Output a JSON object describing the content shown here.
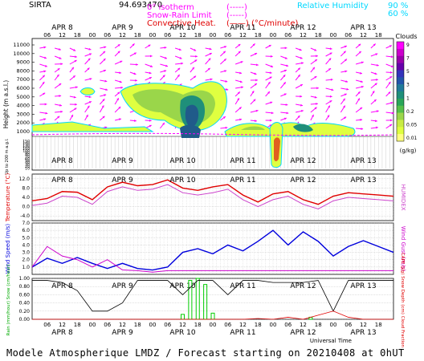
{
  "header": {
    "site": "SIRTA",
    "coords": "94.693470",
    "legend_left": [
      {
        "label": "0° isotherm",
        "sample": "(-----)",
        "color": "#ff00ff"
      },
      {
        "label": "Snow-Rain Limit",
        "sample": "(-----)",
        "color": "#ff00ff"
      },
      {
        "label": "Convective Heat.",
        "sample": "(——) (°C/minute)",
        "color": "#e00000"
      }
    ],
    "legend_right": [
      {
        "label": "Relative Humidity",
        "value": "90 %",
        "color": "#00d8ff"
      },
      {
        "label": "",
        "value": "60 %",
        "color": "#00d8ff"
      }
    ]
  },
  "time_axis": {
    "days": [
      "APR 8",
      "APR 9",
      "APR 10",
      "APR 11",
      "APR 12",
      "APR 13"
    ],
    "hours": [
      "06",
      "12",
      "18",
      "00",
      "06",
      "12",
      "18",
      "00",
      "06",
      "12",
      "18",
      "00",
      "06",
      "12",
      "18",
      "00",
      "06",
      "12",
      "18",
      "00",
      "06",
      "12",
      "18"
    ],
    "bottom_label": "Universal Time"
  },
  "footer": "Modele Atmospherique LMDZ / Forecast starting on 20210408 at 0hUT",
  "chart_data": [
    {
      "type": "heatmap",
      "title": "",
      "ylabel": "Height (m a.s.l.)",
      "ylabel2": "Up to 200 m a.g.l.",
      "y_ticks_upper": [
        11000,
        10000,
        9000,
        8000,
        7000,
        6000,
        5000,
        4000,
        3000,
        2000,
        1000
      ],
      "y_ticks_lower": [
        150,
        140,
        130,
        120,
        110,
        100,
        90,
        80,
        70,
        60,
        50,
        40,
        30,
        20,
        10
      ],
      "colorbar": {
        "title": "Clouds",
        "unit": "(g/kg)",
        "ticks": [
          "9",
          "7",
          "5",
          "3",
          "1",
          "0.2",
          "0.05",
          "0.01"
        ]
      }
    },
    {
      "type": "line",
      "ylabel": "Temperature (°C)",
      "ylabel_right": "HUMIDEX",
      "y_ticks": [
        "12.0",
        "8.0",
        "4.0",
        "0.0",
        "-4.0"
      ],
      "ylim": [
        -6,
        14
      ],
      "x_hours": [
        0,
        6,
        12,
        18,
        24,
        30,
        36,
        42,
        48,
        54,
        60,
        66,
        72,
        78,
        84,
        90,
        96,
        102,
        108,
        114,
        120,
        126,
        132,
        138,
        144
      ],
      "series": [
        {
          "name": "Temperature",
          "color": "#e00000",
          "values": [
            2.5,
            3.5,
            6.5,
            6.2,
            3.0,
            8.5,
            10.5,
            9.0,
            9.5,
            11.5,
            8.0,
            7.0,
            8.5,
            9.5,
            5.0,
            2.0,
            5.5,
            6.5,
            3.0,
            1.0,
            4.5,
            6.0,
            5.5,
            5.0,
            4.5
          ]
        },
        {
          "name": "Humidex",
          "color": "#cc44cc",
          "values": [
            0.5,
            1.5,
            4.5,
            4.0,
            1.0,
            6.5,
            8.5,
            7.0,
            7.5,
            9.5,
            6.0,
            5.0,
            6.0,
            7.5,
            3.0,
            0.0,
            3.0,
            4.5,
            1.0,
            -1.0,
            2.5,
            4.0,
            3.5,
            3.0,
            2.5
          ]
        }
      ]
    },
    {
      "type": "line",
      "ylabel": "Wind Speed (m/s)",
      "ylabel_right": "Wind Gust (m/s)",
      "y_ticks": [
        "7.0",
        "6.0",
        "5.0",
        "4.0",
        "3.0",
        "2.0",
        "1.0"
      ],
      "ylim": [
        0,
        7
      ],
      "x_hours": [
        0,
        6,
        12,
        18,
        24,
        30,
        36,
        42,
        48,
        54,
        60,
        66,
        72,
        78,
        84,
        90,
        96,
        102,
        108,
        114,
        120,
        126,
        132,
        138,
        144
      ],
      "series": [
        {
          "name": "Wind Speed",
          "color": "#0000dd",
          "values": [
            1.0,
            2.2,
            1.5,
            2.3,
            1.5,
            0.8,
            1.5,
            0.8,
            0.6,
            1.0,
            3.0,
            3.5,
            2.8,
            4.0,
            3.2,
            4.5,
            6.0,
            4.0,
            5.8,
            4.5,
            2.5,
            3.8,
            4.6,
            3.8,
            3.0
          ]
        },
        {
          "name": "Wind Gust",
          "color": "#cc00cc",
          "values": [
            1.0,
            3.8,
            2.5,
            2.0,
            1.0,
            2.0,
            0.6,
            0.5,
            0.3,
            0.5,
            0.5,
            0.5,
            0.5,
            0.5,
            0.5,
            0.5,
            0.5,
            0.5,
            0.5,
            0.5,
            0.5,
            0.5,
            0.5,
            0.5,
            0.5
          ]
        }
      ]
    },
    {
      "type": "bar",
      "ylabel": "Rain (mm/hour) Snow (cm/hour)",
      "ylabel_right": "CAPE (J/g) Snow Depth (cm) Cloud Fraction",
      "y_ticks": [
        "1.00",
        "0.80",
        "0.60",
        "0.40",
        "0.20",
        "0.00"
      ],
      "ylim": [
        0,
        1
      ],
      "rain_bars": [
        {
          "x": 60,
          "value": 0.12
        },
        {
          "x": 63,
          "value": 0.95
        },
        {
          "x": 66,
          "value": 1.0
        },
        {
          "x": 69,
          "value": 0.85
        },
        {
          "x": 72,
          "value": 0.15
        },
        {
          "x": 111,
          "value": 0.05
        }
      ],
      "cloud_fraction": [
        0.95,
        0.95,
        0.9,
        0.7,
        0.2,
        0.2,
        0.4,
        0.95,
        0.95,
        0.95,
        0.6,
        0.95,
        0.95,
        0.6,
        0.95,
        0.95,
        0.9,
        0.9,
        0.9,
        0.95,
        0.2,
        0.95,
        0.95,
        0.95,
        0.95
      ],
      "cape": [
        0,
        0,
        0,
        0,
        0,
        0,
        0,
        0,
        0,
        0,
        0,
        0,
        0,
        0,
        0,
        0.02,
        0,
        0.05,
        0,
        0.1,
        0.2,
        0.05,
        0,
        0,
        0
      ]
    }
  ]
}
